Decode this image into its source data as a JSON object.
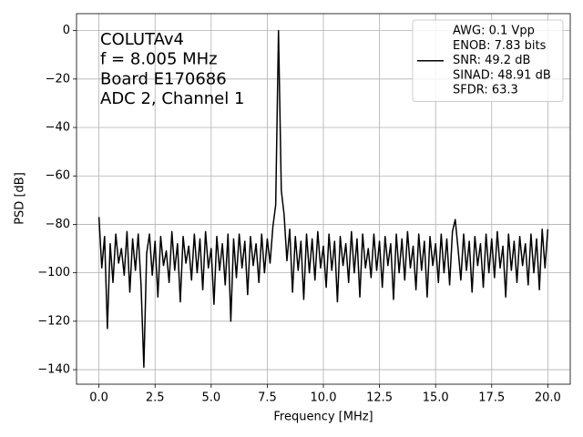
{
  "chart_data": {
    "type": "line",
    "xlabel": "Frequency [MHz]",
    "ylabel": "PSD [dB]",
    "annotation": [
      "COLUTAv4",
      "f = 8.005 MHz",
      "Board E170686",
      "ADC 2, Channel 1"
    ],
    "x": [
      0,
      0.125,
      0.25,
      0.375,
      0.5,
      0.625,
      0.75,
      0.875,
      1,
      1.125,
      1.25,
      1.375,
      1.5,
      1.625,
      1.75,
      1.875,
      2,
      2.125,
      2.25,
      2.375,
      2.5,
      2.625,
      2.75,
      2.875,
      3,
      3.125,
      3.25,
      3.375,
      3.5,
      3.625,
      3.75,
      3.875,
      4,
      4.125,
      4.25,
      4.375,
      4.5,
      4.625,
      4.75,
      4.875,
      5,
      5.125,
      5.25,
      5.375,
      5.5,
      5.625,
      5.75,
      5.875,
      6,
      6.125,
      6.25,
      6.375,
      6.5,
      6.625,
      6.75,
      6.875,
      7,
      7.125,
      7.25,
      7.375,
      7.5,
      7.625,
      7.75,
      7.875,
      8,
      8.125,
      8.25,
      8.375,
      8.5,
      8.625,
      8.75,
      8.875,
      9,
      9.125,
      9.25,
      9.375,
      9.5,
      9.625,
      9.75,
      9.875,
      10,
      10.125,
      10.25,
      10.375,
      10.5,
      10.625,
      10.75,
      10.875,
      11,
      11.125,
      11.25,
      11.375,
      11.5,
      11.625,
      11.75,
      11.875,
      12,
      12.125,
      12.25,
      12.375,
      12.5,
      12.625,
      12.75,
      12.875,
      13,
      13.125,
      13.25,
      13.375,
      13.5,
      13.625,
      13.75,
      13.875,
      14,
      14.125,
      14.25,
      14.375,
      14.5,
      14.625,
      14.75,
      14.875,
      15,
      15.125,
      15.25,
      15.375,
      15.5,
      15.625,
      15.75,
      15.875,
      16,
      16.125,
      16.25,
      16.375,
      16.5,
      16.625,
      16.75,
      16.875,
      17,
      17.125,
      17.25,
      17.375,
      17.5,
      17.625,
      17.75,
      17.875,
      18,
      18.125,
      18.25,
      18.375,
      18.5,
      18.625,
      18.75,
      18.875,
      19,
      19.125,
      19.25,
      19.375,
      19.5,
      19.625,
      19.75,
      19.875,
      20
    ],
    "series": [
      {
        "name": [
          "AWG: 0.1 Vpp",
          "ENOB: 7.83 bits",
          "SNR: 49.2 dB",
          "SINAD: 48.91 dB",
          "SFDR: 63.3"
        ],
        "color": "#000000",
        "values": [
          -77,
          -98,
          -85,
          -123,
          -88,
          -104,
          -84,
          -96,
          -90,
          -101,
          -83,
          -108,
          -86,
          -99,
          -84,
          -105,
          -139,
          -92,
          -84,
          -101,
          -87,
          -110,
          -85,
          -97,
          -91,
          -104,
          -83,
          -99,
          -88,
          -112,
          -85,
          -96,
          -89,
          -103,
          -84,
          -100,
          -86,
          -107,
          -83,
          -98,
          -90,
          -113,
          -85,
          -99,
          -88,
          -105,
          -84,
          -120,
          -86,
          -102,
          -84,
          -98,
          -87,
          -109,
          -85,
          -97,
          -88,
          -104,
          -84,
          -100,
          -86,
          -96,
          -81,
          -72,
          0,
          -66,
          -76,
          -95,
          -82,
          -108,
          -85,
          -99,
          -87,
          -111,
          -84,
          -100,
          -86,
          -103,
          -83,
          -98,
          -89,
          -106,
          -84,
          -99,
          -87,
          -112,
          -85,
          -97,
          -88,
          -104,
          -83,
          -100,
          -86,
          -110,
          -84,
          -98,
          -90,
          -102,
          -84,
          -99,
          -87,
          -106,
          -85,
          -97,
          -88,
          -111,
          -84,
          -100,
          -86,
          -103,
          -83,
          -98,
          -89,
          -107,
          -84,
          -99,
          -87,
          -110,
          -85,
          -97,
          -88,
          -104,
          -84,
          -100,
          -86,
          -105,
          -83,
          -78,
          -90,
          -103,
          -84,
          -99,
          -87,
          -108,
          -85,
          -97,
          -88,
          -106,
          -84,
          -100,
          -86,
          -102,
          -83,
          -98,
          -89,
          -110,
          -84,
          -99,
          -87,
          -104,
          -85,
          -97,
          -88,
          -105,
          -84,
          -100,
          -86,
          -107,
          -82,
          -98,
          -82
        ]
      }
    ],
    "xlim": [
      -1,
      21
    ],
    "xticks": [
      {
        "value": 0,
        "label": "0.0"
      },
      2.5,
      {
        "value": 5,
        "label": "5.0"
      },
      7.5,
      {
        "value": 10,
        "label": "10.0"
      },
      12.5,
      {
        "value": 15,
        "label": "15.0"
      },
      17.5,
      {
        "value": 20,
        "label": "20.0"
      }
    ],
    "ylim": [
      -146,
      7
    ],
    "yticks": [
      {
        "value": -140,
        "label": "−140"
      },
      {
        "value": -120,
        "label": "−120"
      },
      {
        "value": -100,
        "label": "−100"
      },
      {
        "value": -80,
        "label": "−80"
      },
      {
        "value": -60,
        "label": "−60"
      },
      {
        "value": -40,
        "label": "−40"
      },
      {
        "value": -20,
        "label": "−20"
      },
      0
    ],
    "grid": true,
    "legend": "upper right"
  }
}
